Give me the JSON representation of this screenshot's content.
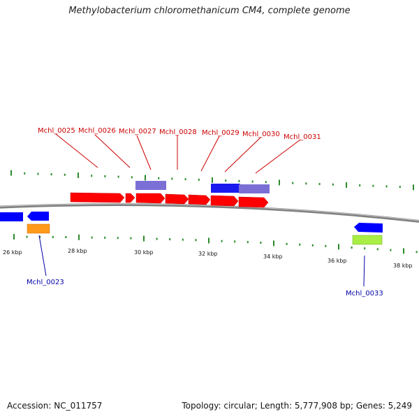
{
  "title": "Methylobacterium chloromethanicum CM4, complete genome",
  "footer": {
    "accession": "Accession: NC_011757",
    "summary": "Topology: circular; Length: 5,777,908 bp; Genes: 5,249"
  },
  "scale": {
    "ticks": [
      {
        "label": "26 kbp"
      },
      {
        "label": "28 kbp"
      },
      {
        "label": "30 kbp"
      },
      {
        "label": "32 kbp"
      },
      {
        "label": "34 kbp"
      },
      {
        "label": "36 kbp"
      },
      {
        "label": "38 kbp"
      }
    ]
  },
  "genes_forward": [
    {
      "label": "Mchl_0025",
      "color": "#ff0000"
    },
    {
      "label": "Mchl_0026",
      "color": "#ff0000"
    },
    {
      "label": "Mchl_0027",
      "color": "#ff0000"
    },
    {
      "label": "Mchl_0028",
      "color": "#ff0000"
    },
    {
      "label": "Mchl_0029",
      "color": "#ff0000"
    },
    {
      "label": "Mchl_0030",
      "color": "#ff0000"
    },
    {
      "label": "Mchl_0031",
      "color": "#ff0000"
    }
  ],
  "genes_reverse": [
    {
      "label": "Mchl_0023",
      "color": "#e07b00"
    },
    {
      "label": "Mchl_0033",
      "color": "#88dd22"
    }
  ],
  "colors": {
    "forward_label": "#cc0000",
    "reverse_label": "#0000aa",
    "cds_blue": "#0000ff",
    "feature_purple": "#7b6fd6",
    "tick_green": "#2a8a2a",
    "backbone": "#808080"
  }
}
